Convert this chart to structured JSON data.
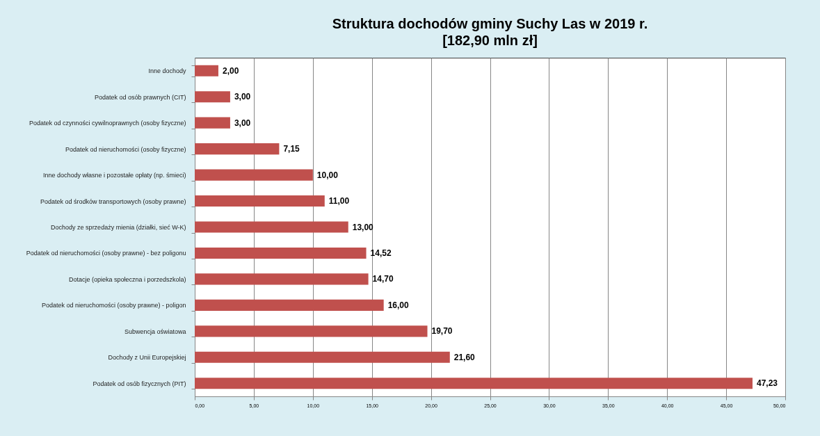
{
  "chart_data": {
    "type": "bar",
    "orientation": "horizontal",
    "title": "Struktura dochodów gminy Suchy Las w 2019 r.",
    "subtitle": "[182,90 mln zł]",
    "categories": [
      "Inne dochody",
      "Podatek od osób prawnych (CIT)",
      "Podatek od czynności cywilnoprawnych (osoby fizyczne)",
      "Podatek od nieruchomości (osoby fizyczne)",
      "Inne dochody własne i pozostałe opłaty (np. śmieci)",
      "Podatek od środków transportowych (osoby prawne)",
      "Dochody ze sprzedaży mienia (działki, sieć W-K)",
      "Podatek od nieruchomości (osoby prawne) - bez poligonu",
      "Dotacje (opieka społeczna i porzedszkola)",
      "Podatek od nieruchomości (osoby prawne) - poligon",
      "Subwencja oświatowa",
      "Dochody z Unii Europejskiej",
      "Podatek od osób fizycznych (PIT)"
    ],
    "values": [
      2.0,
      3.0,
      3.0,
      7.15,
      10.0,
      11.0,
      13.0,
      14.52,
      14.7,
      16.0,
      19.7,
      21.6,
      47.23
    ],
    "value_labels": [
      "2,00",
      "3,00",
      "3,00",
      "7,15",
      "10,00",
      "11,00",
      "13,00",
      "14,52",
      "14,70",
      "16,00",
      "19,70",
      "21,60",
      "47,23"
    ],
    "color": "#c0504d",
    "xlim": [
      0,
      50
    ],
    "xticks": [
      {
        "value": 0,
        "label": "0,00"
      },
      {
        "value": 5,
        "label": "5,00"
      },
      {
        "value": 10,
        "label": "10,00"
      },
      {
        "value": 15,
        "label": "15,00"
      },
      {
        "value": 20,
        "label": "20,00"
      },
      {
        "value": 25,
        "label": "25,00"
      },
      {
        "value": 30,
        "label": "30,00"
      },
      {
        "value": 35,
        "label": "35,00"
      },
      {
        "value": 40,
        "label": "40,00"
      },
      {
        "value": 45,
        "label": "45,00"
      },
      {
        "value": 50,
        "label": "50,00"
      }
    ],
    "grid": "x"
  }
}
